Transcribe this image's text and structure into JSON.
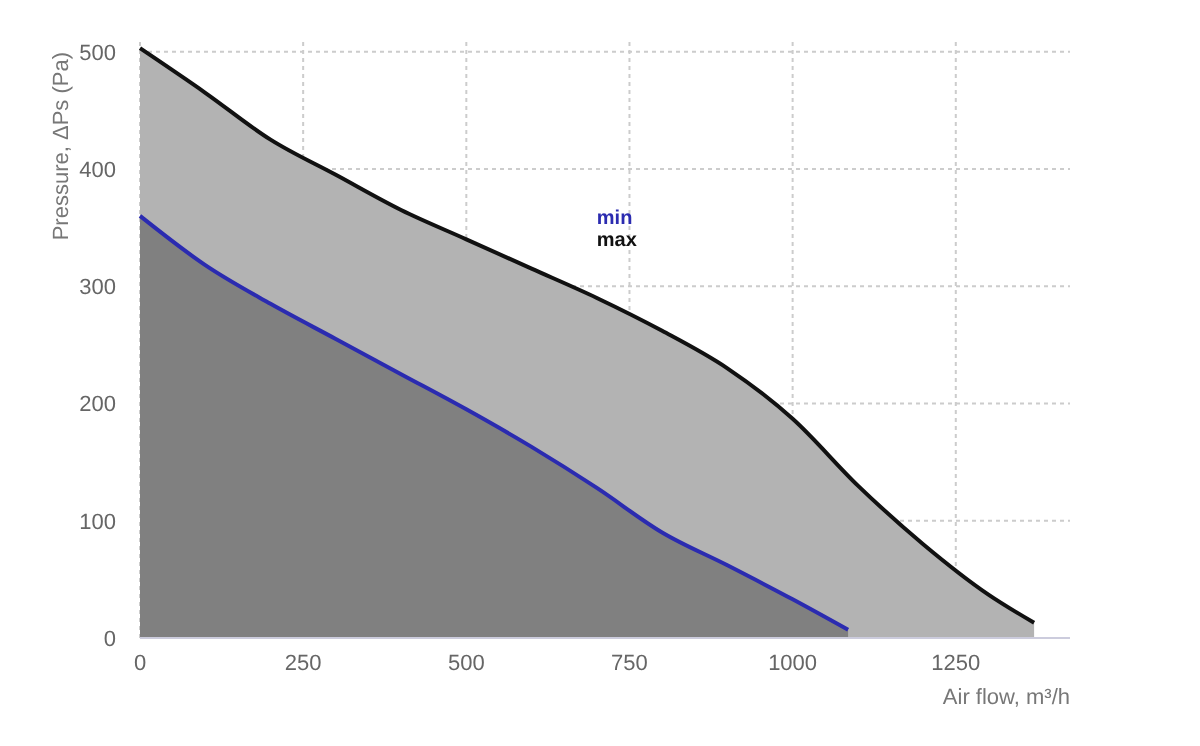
{
  "chart_data": {
    "type": "area",
    "xlabel": "Air flow, m³/h",
    "ylabel": "Pressure, ΔPs (Pa)",
    "xlim": [
      0,
      1425
    ],
    "ylim": [
      0,
      510
    ],
    "xticks": [
      0,
      250,
      500,
      750,
      1000,
      1250
    ],
    "yticks": [
      0,
      100,
      200,
      300,
      400,
      500
    ],
    "grid": true,
    "legend": "top",
    "series": [
      {
        "name": "min",
        "color": "#2b2bb0",
        "x": [
          0,
          100,
          200,
          300,
          400,
          500,
          600,
          700,
          800,
          900,
          1000,
          1085
        ],
        "values": [
          360,
          318,
          285,
          255,
          225,
          195,
          163,
          128,
          90,
          62,
          33,
          7
        ]
      },
      {
        "name": "max",
        "color": "#111111",
        "x": [
          0,
          100,
          200,
          300,
          400,
          500,
          600,
          700,
          800,
          900,
          1000,
          1100,
          1200,
          1300,
          1370
        ],
        "values": [
          503,
          465,
          425,
          395,
          365,
          340,
          315,
          290,
          262,
          230,
          187,
          130,
          80,
          37,
          13
        ]
      }
    ]
  }
}
